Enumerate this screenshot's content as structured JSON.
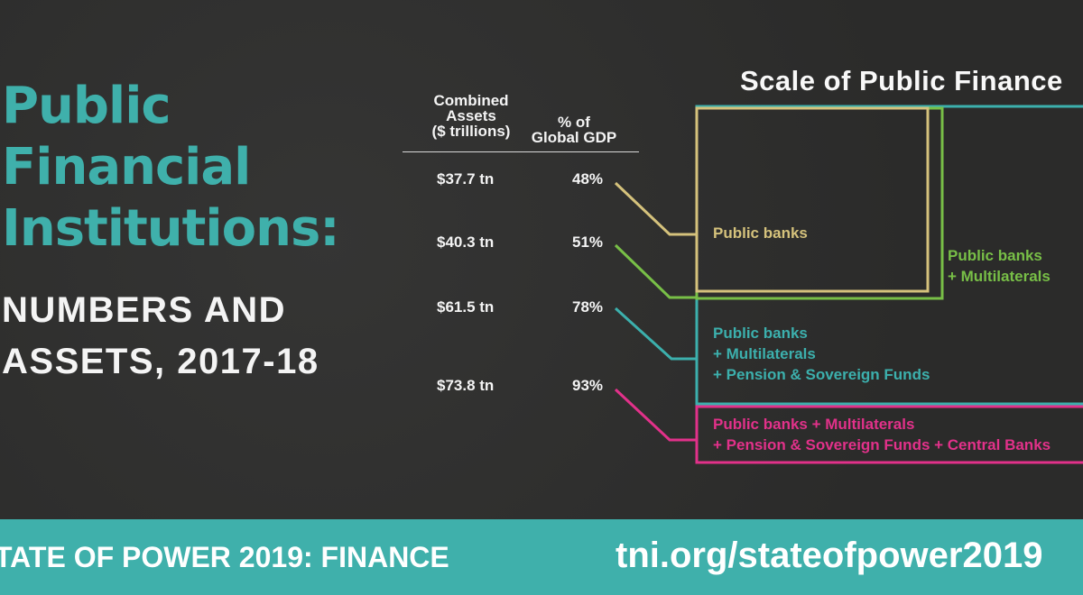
{
  "title_lines": [
    "Public",
    "Financial",
    "Institutions:"
  ],
  "subtitle_lines": [
    "NUMBERS AND",
    "ASSETS, 2017-18"
  ],
  "table": {
    "assets_header": [
      "Combined",
      "Assets",
      "($ trillions)"
    ],
    "gdp_header": [
      "% of",
      "Global GDP"
    ]
  },
  "chart_data": {
    "type": "table",
    "title": "Scale of Public Finance",
    "columns": [
      "Combined Assets ($ trillions)",
      "% of Global GDP"
    ],
    "rows": [
      {
        "assets": "$37.7 tn",
        "gdp": "48%",
        "assets_tn": 37.7,
        "gdp_pct": 48,
        "label_lines": [
          "Public banks"
        ],
        "color": "#d5c27c"
      },
      {
        "assets": "$40.3 tn",
        "gdp": "51%",
        "assets_tn": 40.3,
        "gdp_pct": 51,
        "label_lines": [
          "Public banks",
          "+ Multilaterals"
        ],
        "color": "#78bf47"
      },
      {
        "assets": "$61.5 tn",
        "gdp": "78%",
        "assets_tn": 61.5,
        "gdp_pct": 78,
        "label_lines": [
          "Public banks",
          "+ Multilaterals",
          "+ Pension & Sovereign Funds"
        ],
        "color": "#3cb0ad"
      },
      {
        "assets": "$73.8 tn",
        "gdp": "93%",
        "assets_tn": 73.8,
        "gdp_pct": 93,
        "label_lines": [
          "Public banks + Multilaterals",
          "+ Pension & Sovereign Funds + Central Banks"
        ],
        "color": "#e2318a"
      }
    ]
  },
  "footer": {
    "left": "TATE OF POWER 2019: FINANCE",
    "right": "tni.org/stateofpower2019"
  },
  "colors": {
    "teal": "#3fb0ab",
    "background": "#2e2e2d"
  }
}
